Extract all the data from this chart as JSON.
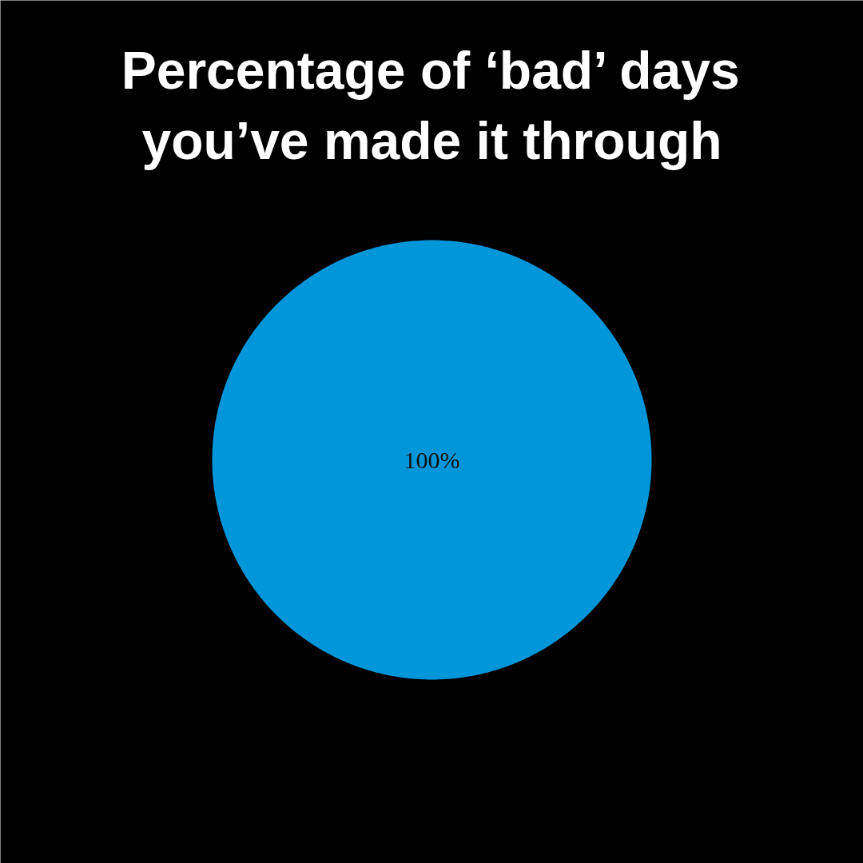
{
  "chart_data": {
    "type": "pie",
    "title": "Percentage of ‘bad’ days\nyou’ve made it through",
    "categories": [
      null
    ],
    "values": [
      100
    ],
    "colors": [
      "#0096d9"
    ],
    "value_labels": [
      "100%"
    ]
  }
}
